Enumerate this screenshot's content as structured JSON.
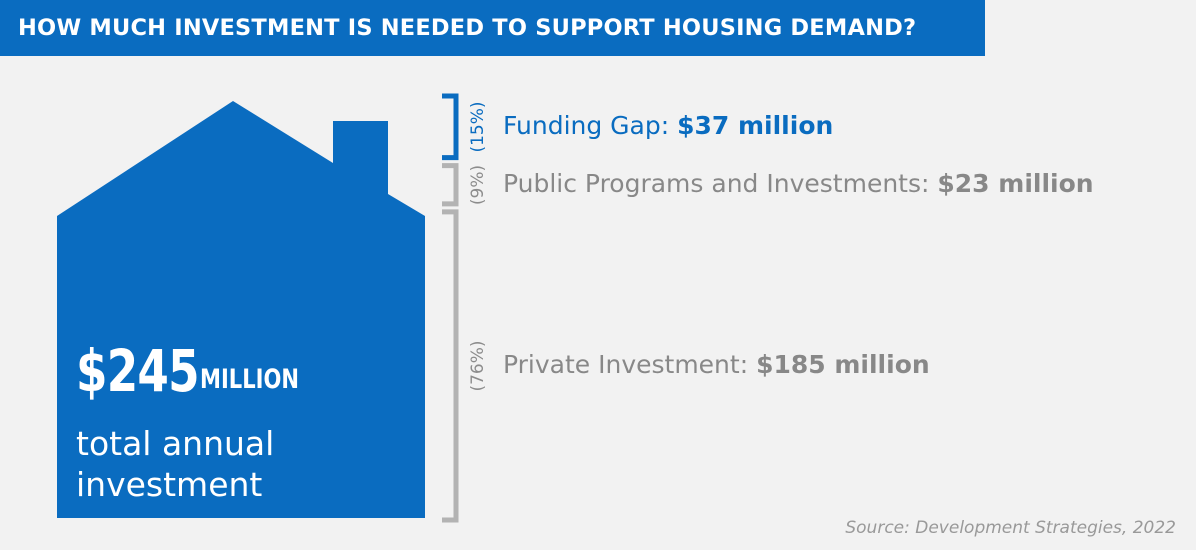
{
  "title": "HOW MUCH INVESTMENT IS NEEDED TO SUPPORT HOUSING DEMAND?",
  "total": {
    "number": "$245",
    "unit": "MILLION",
    "label": "total annual investment"
  },
  "source": "Source: Development Strategies, 2022",
  "colors": {
    "brand_blue": "#0a6cc0",
    "grey_text": "#888888",
    "bracket_grey": "#b3b3b3",
    "background": "#f2f2f2"
  },
  "chart_data": {
    "type": "bar",
    "orientation": "stacked-vertical",
    "title": "HOW MUCH INVESTMENT IS NEEDED TO SUPPORT HOUSING DEMAND?",
    "total_value": 245,
    "total_text": "$245 MILLION total annual investment",
    "segments": [
      {
        "label": "Funding Gap: ",
        "amount": "$37 million",
        "value": 37,
        "percent": "(15%)",
        "color": "#0a6cc0"
      },
      {
        "label": "Public Programs and Investments: ",
        "amount": "$23 million",
        "value": 23,
        "percent": "(9%)",
        "color": "#888888"
      },
      {
        "label": "Private Investment: ",
        "amount": "$185 million",
        "value": 185,
        "percent": "(76%)",
        "color": "#888888"
      }
    ]
  }
}
